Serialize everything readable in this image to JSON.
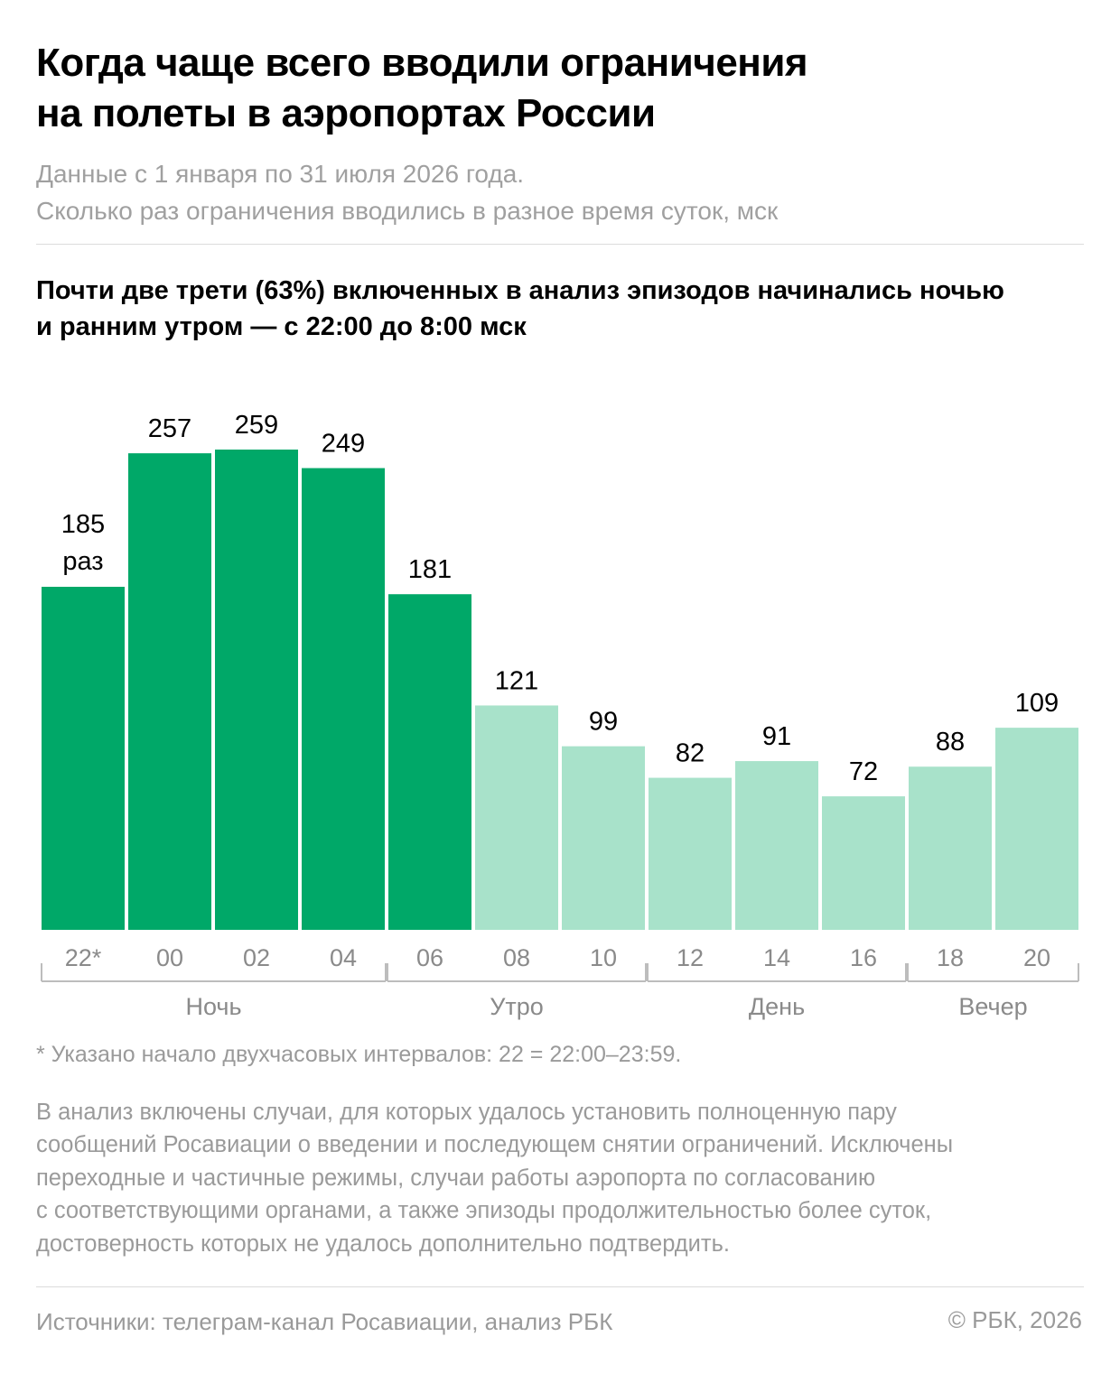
{
  "title": {
    "line1": "Когда чаще всего вводили ограничения",
    "line2": "на полеты в аэропортах России"
  },
  "subtitle": {
    "line1": "Данные с 1 января по 31 июля 2026 года.",
    "line2": "Сколько раз ограничения вводились в разное время суток, мск"
  },
  "lead": {
    "line1": "Почти две трети (63%) включенных в анализ эпизодов начинались ночью",
    "line2": "и ранним утром — с 22:00 до 8:00 мск"
  },
  "colors": {
    "accent": "#00a868",
    "light": "#a8e2ca",
    "axis": "#bdbdbd",
    "label_gray": "#8a8a8a"
  },
  "chart_data": {
    "type": "bar",
    "categories": [
      "22*",
      "00",
      "02",
      "04",
      "06",
      "08",
      "10",
      "12",
      "14",
      "16",
      "18",
      "20"
    ],
    "values": [
      185,
      257,
      259,
      249,
      181,
      121,
      99,
      82,
      91,
      72,
      88,
      109
    ],
    "highlighted": [
      true,
      true,
      true,
      true,
      true,
      false,
      false,
      false,
      false,
      false,
      false,
      false
    ],
    "unit_label": "раз",
    "ylim": [
      0,
      259
    ],
    "groups": [
      {
        "label": "Ночь",
        "from": 0,
        "to": 3
      },
      {
        "label": "Утро",
        "from": 4,
        "to": 6
      },
      {
        "label": "День",
        "from": 7,
        "to": 9
      },
      {
        "label": "Вечер",
        "from": 10,
        "to": 11
      }
    ]
  },
  "footnote": "* Указано начало двухчасовых интервалов: 22 = 22:00–23:59.",
  "method": [
    "В анализ включены случаи, для которых удалось установить полноценную пару",
    "сообщений Росавиации о введении и последующем снятии ограничений. Исключены",
    "переходные и частичные режимы, случаи работы аэропорта по согласованию",
    "с соответствующими органами, а также эпизоды продолжительностью более суток,",
    "достоверность которых не удалось дополнительно подтвердить."
  ],
  "source": "Источники: телеграм-канал Росавиации, анализ РБК",
  "copyright": "© РБК, 2026"
}
